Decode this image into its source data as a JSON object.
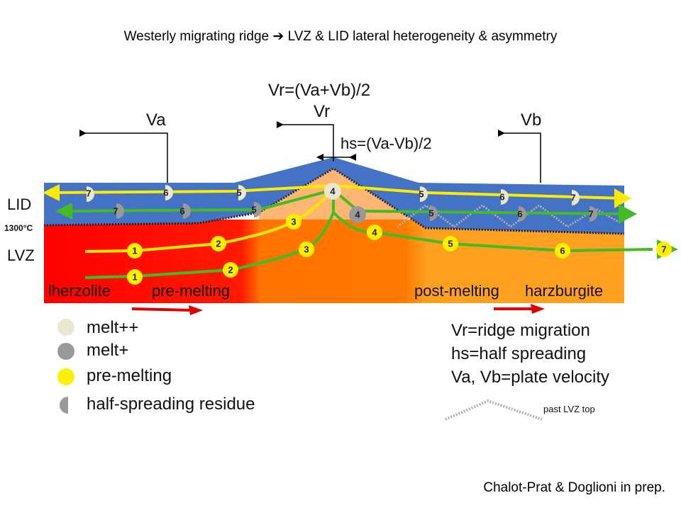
{
  "slide": {
    "title": "Westerly migrating ridge ➔ LVZ & LID lateral heterogeneity & asymmetry",
    "citation": "Chalot-Prat & Doglioni in prep."
  },
  "diagram": {
    "equation_vr": "Vr=(Va+Vb)/2",
    "label_vr": "Vr",
    "equation_hs": "hs=(Va-Vb)/2",
    "label_va": "Va",
    "label_vb": "Vb",
    "label_lid": "LID",
    "label_temp": "1300°C",
    "label_lvz": "LVZ",
    "label_lherzolite": "lherzolite",
    "label_premelting": "pre-melting",
    "label_postmelting": "post-melting",
    "label_harzburgite": "harzburgite",
    "colors": {
      "lid": "#4472C4",
      "lvz_red": "#FF0000",
      "lvz_orange": "#FF8000",
      "lvz_light_orange": "#FFA020",
      "yellow_path": "#FFEB00",
      "green_path": "#44BB22",
      "melt_plus_plus": "#EAE6D0",
      "melt_plus": "#999999",
      "premelting": "#FFF000",
      "arrow_red": "#E00000"
    }
  },
  "legend_left": {
    "items": [
      {
        "label": "melt++",
        "symbol": "melt-plus-plus"
      },
      {
        "label": "melt+",
        "symbol": "melt-plus"
      },
      {
        "label": "pre-melting",
        "symbol": "pre-melting"
      },
      {
        "label": "half-spreading residue",
        "symbol": "half-spreading-residue"
      }
    ]
  },
  "legend_right": {
    "items": [
      "Vr=ridge migration",
      "hs=half spreading",
      "Va, Vb=plate velocity"
    ],
    "past_lvz_label": "past LVZ top"
  },
  "markers": {
    "yellow_top": [
      "7",
      "6",
      "5",
      "4",
      "5",
      "6",
      "7"
    ],
    "green_top": [
      "7",
      "6",
      "5",
      "4",
      "5",
      "6",
      "7"
    ],
    "yellow_lvz": [
      "1",
      "2",
      "3"
    ],
    "green_lvz": [
      "1",
      "2",
      "3",
      "4",
      "5",
      "6",
      "7"
    ]
  }
}
